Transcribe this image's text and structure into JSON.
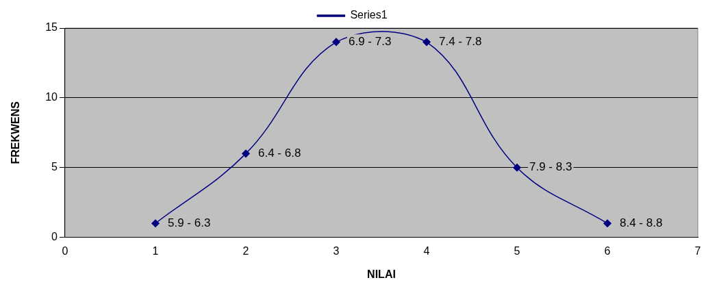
{
  "chart_data": {
    "type": "line",
    "xlabel": "NILAI",
    "ylabel": "FREKWENS",
    "x": [
      1,
      2,
      3,
      4,
      5,
      6
    ],
    "series": [
      {
        "name": "Series1",
        "color": "#000080",
        "values": [
          1,
          6,
          14,
          14,
          5,
          1
        ]
      }
    ],
    "xlim": [
      0,
      7
    ],
    "xticks": [
      0,
      1,
      2,
      3,
      4,
      5,
      6,
      7
    ],
    "ylim": [
      0,
      15
    ],
    "yticks": [
      0,
      5,
      10,
      15
    ],
    "grid": "y",
    "legend": "top",
    "marker": "diamond",
    "line_style": "solid",
    "annotations": [
      {
        "text": "5.9 - 6.3",
        "x": 1,
        "y": 1
      },
      {
        "text": "6.4 - 6.8",
        "x": 2,
        "y": 6
      },
      {
        "text": "6.9 - 7.3",
        "x": 3,
        "y": 14
      },
      {
        "text": "7.4 - 7.8",
        "x": 4,
        "y": 14
      },
      {
        "text": "7.9 - 8.3",
        "x": 5,
        "y": 5
      },
      {
        "text": "8.4 - 8.8",
        "x": 6,
        "y": 1
      }
    ]
  }
}
